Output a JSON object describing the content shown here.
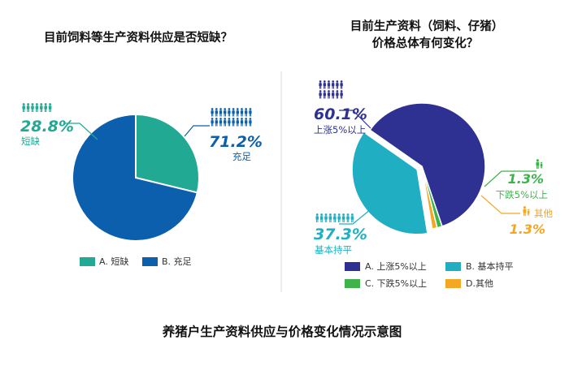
{
  "caption": "养猪户生产资料供应与价格变化情况示意图",
  "colors": {
    "shortage": "#21a993",
    "sufficient": "#0b5fad",
    "rise": "#2e3191",
    "flat": "#20afc2",
    "fall": "#3db34a",
    "other": "#f5a623",
    "divider": "#d9d9d9"
  },
  "chart_data": [
    {
      "type": "pie",
      "title": "目前饲料等生产资料供应是否短缺？",
      "slices": [
        {
          "label": "短缺",
          "value": 28.8,
          "value_label": "28.8%",
          "legend": "A. 短缺",
          "color": "#21a993",
          "icon": "people-icon"
        },
        {
          "label": "充足",
          "value": 71.2,
          "value_label": "71.2%",
          "legend": "B. 充足",
          "color": "#0b5fad",
          "icon": "people-icon"
        }
      ]
    },
    {
      "type": "pie",
      "title_lines": [
        "目前生产资料（饲料、仔猪）",
        "价格总体有何变化？"
      ],
      "slices": [
        {
          "label": "上涨5%以上",
          "value": 60.1,
          "value_label": "60.1%",
          "legend": "A. 上涨5%以上",
          "color": "#2e3191",
          "icon": "people-icon"
        },
        {
          "label": "下跌5%以上",
          "value": 1.3,
          "value_label": "1.3%",
          "legend": "C. 下跌5%以上",
          "color": "#3db34a",
          "icon": "person-icon"
        },
        {
          "label": "其他",
          "value": 1.3,
          "value_label": "1.3%",
          "legend": "D.其他",
          "color": "#f5a623",
          "icon": "person-icon"
        },
        {
          "label": "基本持平",
          "value": 37.3,
          "value_label": "37.3%",
          "legend": "B. 基本持平",
          "color": "#20afc2",
          "icon": "people-icon"
        }
      ]
    }
  ]
}
